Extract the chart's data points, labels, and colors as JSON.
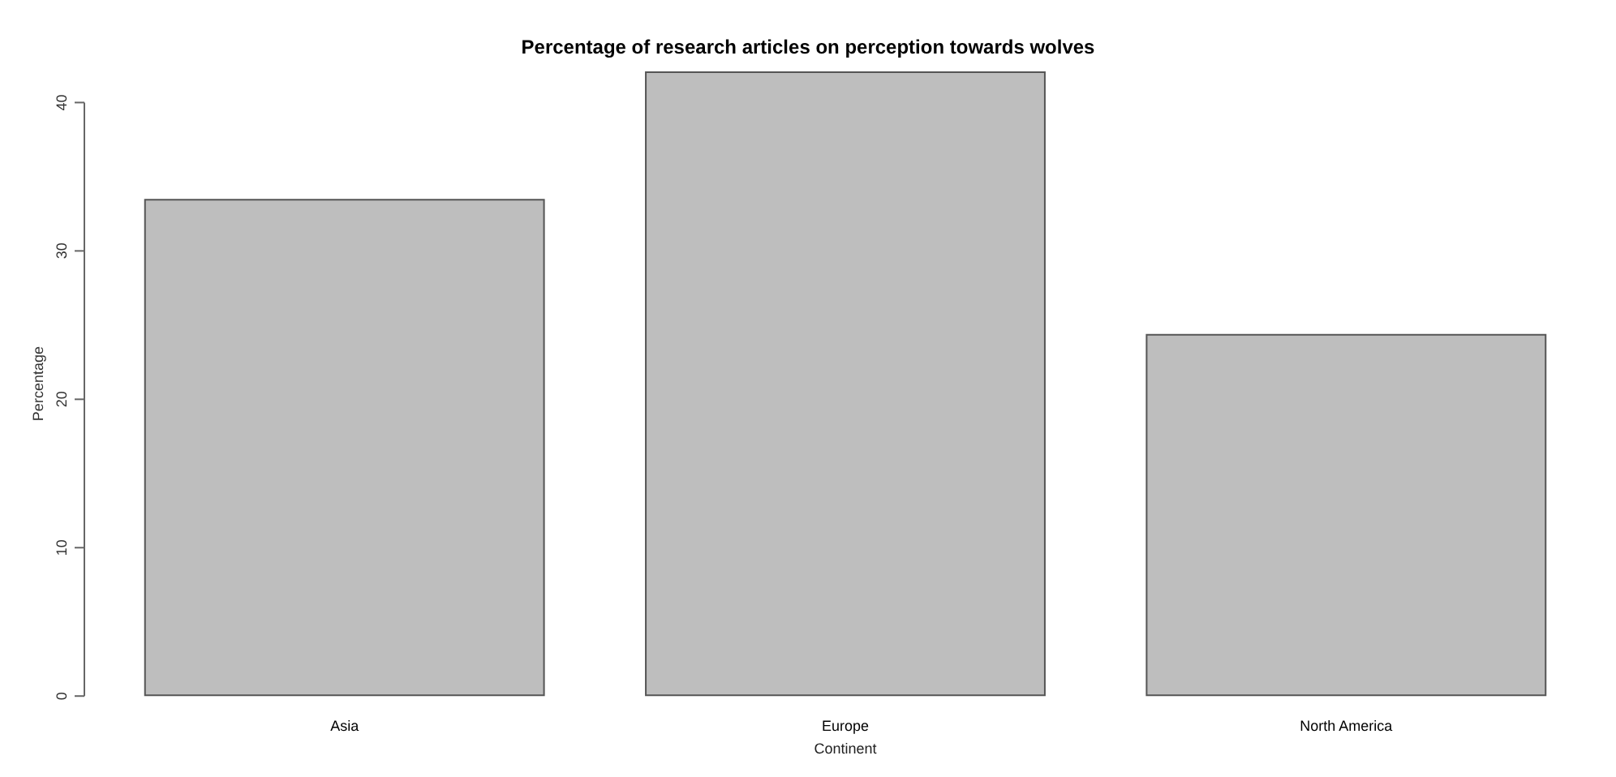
{
  "chart_data": {
    "type": "bar",
    "title": "Percentage of research articles on perception towards wolves",
    "xlabel": "Continent",
    "ylabel": "Percentage",
    "categories": [
      "Asia",
      "Europe",
      "North America"
    ],
    "values": [
      33.5,
      42.1,
      24.4
    ],
    "color": "#bebebe",
    "ylim": [
      0,
      42.1
    ],
    "yticks": [
      0,
      10,
      20,
      30,
      40
    ],
    "grid": false
  }
}
